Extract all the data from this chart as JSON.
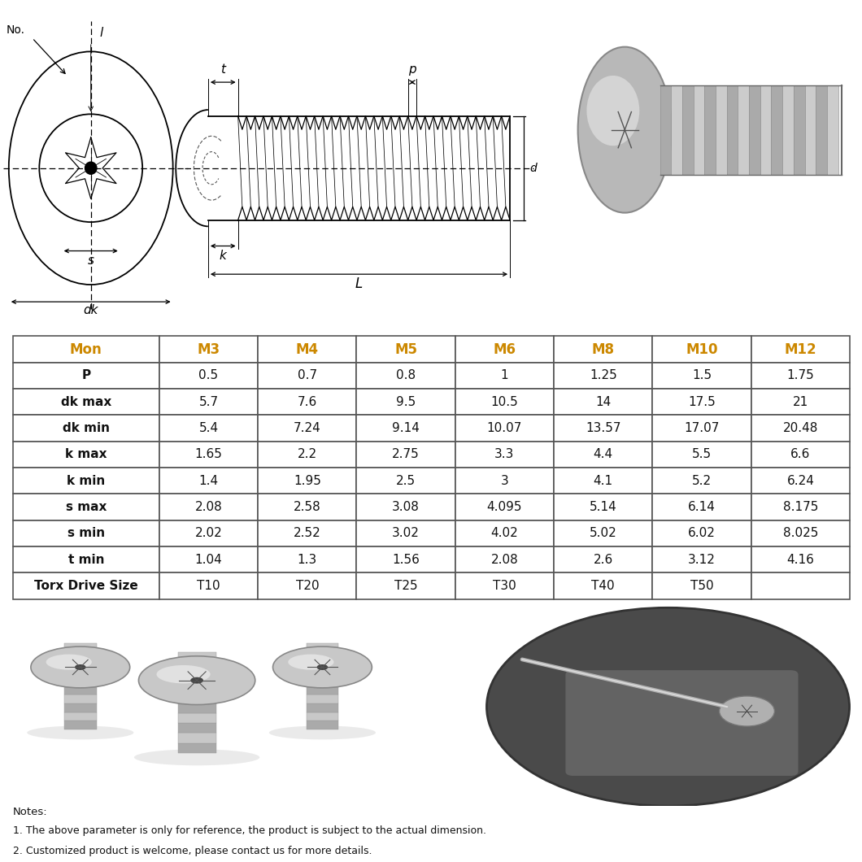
{
  "table_headers": [
    "Mon",
    "M3",
    "M4",
    "M5",
    "M6",
    "M8",
    "M10",
    "M12"
  ],
  "table_rows": [
    [
      "P",
      "0.5",
      "0.7",
      "0.8",
      "1",
      "1.25",
      "1.5",
      "1.75"
    ],
    [
      "dk max",
      "5.7",
      "7.6",
      "9.5",
      "10.5",
      "14",
      "17.5",
      "21"
    ],
    [
      "dk min",
      "5.4",
      "7.24",
      "9.14",
      "10.07",
      "13.57",
      "17.07",
      "20.48"
    ],
    [
      "k max",
      "1.65",
      "2.2",
      "2.75",
      "3.3",
      "4.4",
      "5.5",
      "6.6"
    ],
    [
      "k min",
      "1.4",
      "1.95",
      "2.5",
      "3",
      "4.1",
      "5.2",
      "6.24"
    ],
    [
      "s max",
      "2.08",
      "2.58",
      "3.08",
      "4.095",
      "5.14",
      "6.14",
      "8.175"
    ],
    [
      "s min",
      "2.02",
      "2.52",
      "3.02",
      "4.02",
      "5.02",
      "6.02",
      "8.025"
    ],
    [
      "t min",
      "1.04",
      "1.3",
      "1.56",
      "2.08",
      "2.6",
      "3.12",
      "4.16"
    ],
    [
      "Torx Drive Size",
      "T10",
      "T20",
      "T25",
      "T30",
      "T40",
      "T50",
      ""
    ]
  ],
  "notes": [
    "Notes:",
    "1. The above parameter is only for reference, the product is subject to the actual dimension.",
    "2. Customized product is welcome, please contact us for more details."
  ],
  "bg_color": "#ffffff",
  "table_border_color": "#555555",
  "header_text_color": "#cc8800",
  "data_text_color": "#111111",
  "first_col_text_color": "#111111"
}
